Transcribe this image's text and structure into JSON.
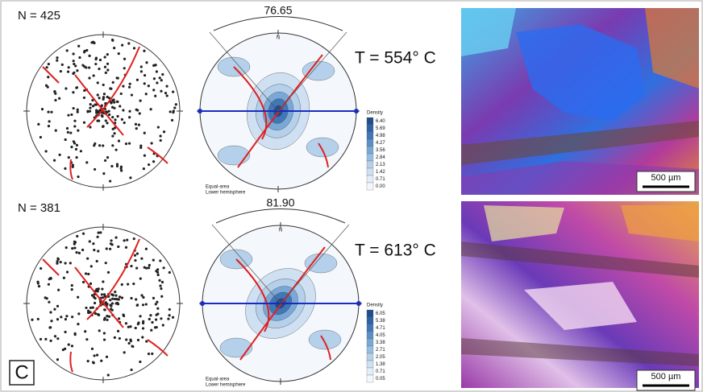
{
  "panel_label": "C",
  "rows": [
    {
      "n_label": "N = 425",
      "angle_label": "76.65",
      "temperature": "T = 554° C",
      "north": "N",
      "density_title": "Density",
      "density_levels": [
        "6.40",
        "5.69",
        "4.98",
        "4.27",
        "3.56",
        "2.84",
        "2.13",
        "1.42",
        "0.71",
        "0.00"
      ],
      "projection": [
        "Equal-area",
        "Lower hemisphere"
      ],
      "scale_bar": "500 µm"
    },
    {
      "n_label": "N = 381",
      "angle_label": "81.90",
      "temperature": "T = 613° C",
      "north": "N",
      "density_title": "Density",
      "density_levels": [
        "6.05",
        "5.38",
        "4.71",
        "4.05",
        "3.38",
        "2.71",
        "2.05",
        "1.38",
        "0.71",
        "0.05"
      ],
      "projection": [
        "Equal-area",
        "Lower hemisphere"
      ],
      "scale_bar": "500 µm"
    }
  ]
}
